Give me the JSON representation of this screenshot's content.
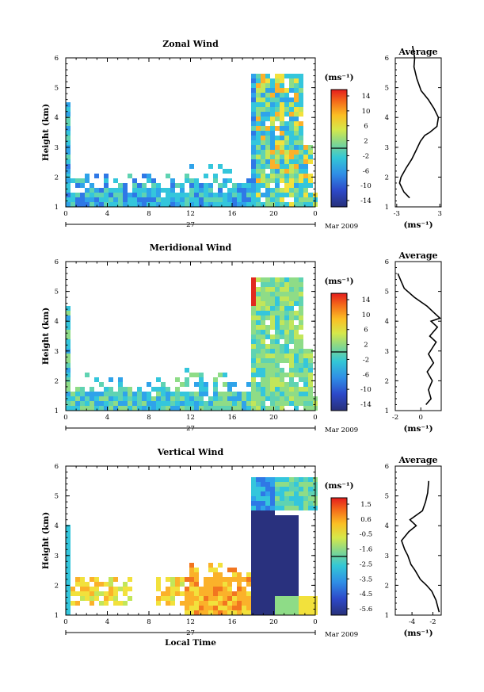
{
  "chart_data": [
    {
      "type": "heatmap",
      "title": "Zonal Wind",
      "ylabel": "Height (km)",
      "xlim": [
        0,
        24
      ],
      "ylim": [
        1,
        6
      ],
      "xticks": [
        "0",
        "4",
        "8",
        "12",
        "16",
        "20",
        "0"
      ],
      "yticks": [
        "1",
        "2",
        "3",
        "4",
        "5",
        "6"
      ],
      "day_label": "27",
      "date_label": "Mar 2009",
      "colorbar": {
        "unit": "(ms⁻¹)",
        "labels": [
          "14",
          "10",
          "6",
          "2",
          "-2",
          "-6",
          "-10",
          "-14"
        ]
      },
      "profile": {
        "title": "Average",
        "xlabel": "(ms⁻¹)",
        "xticks": [
          "-3",
          "3"
        ],
        "xlim": [
          -3.2,
          3.2
        ],
        "yticks": [
          "1",
          "2",
          "3",
          "4",
          "5",
          "6"
        ],
        "points": [
          [
            -1.2,
            1.3
          ],
          [
            -2.0,
            1.5
          ],
          [
            -2.6,
            1.8
          ],
          [
            -2.4,
            2.0
          ],
          [
            -1.7,
            2.3
          ],
          [
            -0.9,
            2.6
          ],
          [
            -0.3,
            2.9
          ],
          [
            0.3,
            3.2
          ],
          [
            0.9,
            3.4
          ],
          [
            1.6,
            3.5
          ],
          [
            2.6,
            3.7
          ],
          [
            2.8,
            4.0
          ],
          [
            2.2,
            4.3
          ],
          [
            1.4,
            4.6
          ],
          [
            0.4,
            4.9
          ],
          [
            -0.2,
            5.3
          ],
          [
            -0.6,
            5.7
          ],
          [
            -0.5,
            6.0
          ],
          [
            -0.8,
            6.4
          ]
        ]
      }
    },
    {
      "type": "heatmap",
      "title": "Meridional Wind",
      "ylabel": "Height (km)",
      "xlim": [
        0,
        24
      ],
      "ylim": [
        1,
        6
      ],
      "xticks": [
        "0",
        "4",
        "8",
        "12",
        "16",
        "20",
        "0"
      ],
      "yticks": [
        "1",
        "2",
        "3",
        "4",
        "5",
        "6"
      ],
      "day_label": "27",
      "date_label": "Mar 2009",
      "colorbar": {
        "unit": "(ms⁻¹)",
        "labels": [
          "14",
          "10",
          "6",
          "2",
          "-2",
          "-6",
          "-10",
          "-14"
        ]
      },
      "profile": {
        "title": "Average",
        "xlabel": "(ms⁻¹)",
        "xticks": [
          "-2",
          "0"
        ],
        "xlim": [
          -2.0,
          1.6
        ],
        "yticks": [
          "1",
          "2",
          "3",
          "4",
          "5",
          "6"
        ],
        "points": [
          [
            0.4,
            1.2
          ],
          [
            0.8,
            1.4
          ],
          [
            0.6,
            1.7
          ],
          [
            0.9,
            2.0
          ],
          [
            0.5,
            2.3
          ],
          [
            1.0,
            2.6
          ],
          [
            0.6,
            2.9
          ],
          [
            1.2,
            3.3
          ],
          [
            0.7,
            3.5
          ],
          [
            1.3,
            3.8
          ],
          [
            0.8,
            4.0
          ],
          [
            1.5,
            4.1
          ],
          [
            1.0,
            4.3
          ],
          [
            0.5,
            4.5
          ],
          [
            -0.5,
            4.8
          ],
          [
            -1.3,
            5.1
          ],
          [
            -1.6,
            5.4
          ],
          [
            -1.8,
            5.6
          ]
        ]
      }
    },
    {
      "type": "heatmap",
      "title": "Vertical Wind",
      "ylabel": "Height (km)",
      "xlabel": "Local Time",
      "xlim": [
        0,
        24
      ],
      "ylim": [
        1,
        6
      ],
      "xticks": [
        "0",
        "4",
        "8",
        "12",
        "16",
        "20",
        "0"
      ],
      "yticks": [
        "1",
        "2",
        "3",
        "4",
        "5",
        "6"
      ],
      "day_label": "27",
      "date_label": "Mar 2009",
      "colorbar": {
        "unit": "(ms⁻¹)",
        "labels": [
          "1.5",
          "0.6",
          "-0.5",
          "-1.6",
          "-2.5",
          "-3.5",
          "-4.5",
          "-5.6"
        ]
      },
      "profile": {
        "title": "Average",
        "xlabel": "(ms⁻¹)",
        "xticks": [
          "-4",
          "-2"
        ],
        "xlim": [
          -5.6,
          -1.2
        ],
        "yticks": [
          "1",
          "2",
          "3",
          "4",
          "5",
          "6"
        ],
        "points": [
          [
            -1.4,
            1.1
          ],
          [
            -1.7,
            1.5
          ],
          [
            -2.1,
            1.8
          ],
          [
            -2.6,
            2.0
          ],
          [
            -3.2,
            2.2
          ],
          [
            -3.7,
            2.5
          ],
          [
            -4.1,
            2.7
          ],
          [
            -4.4,
            3.0
          ],
          [
            -4.7,
            3.2
          ],
          [
            -5.0,
            3.5
          ],
          [
            -4.3,
            3.8
          ],
          [
            -3.6,
            4.0
          ],
          [
            -4.2,
            4.2
          ],
          [
            -3.0,
            4.5
          ],
          [
            -2.7,
            4.8
          ],
          [
            -2.5,
            5.1
          ],
          [
            -2.4,
            5.5
          ]
        ]
      }
    }
  ]
}
